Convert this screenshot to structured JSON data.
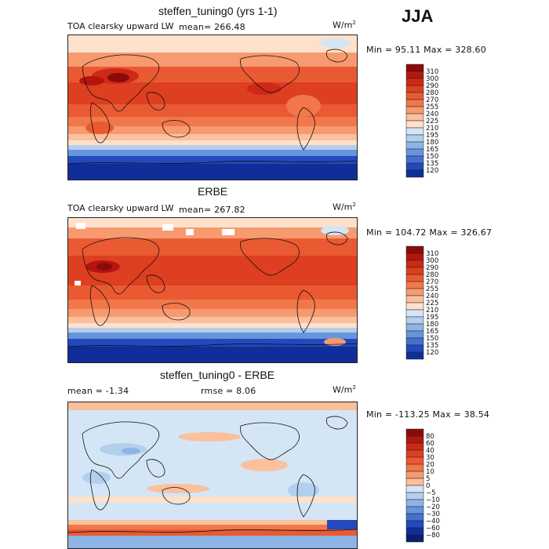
{
  "season": "JJA",
  "panels": [
    {
      "title": "steffen_tuning0 (yrs 1-1)",
      "variable": "TOA clearsky upward LW",
      "stat_left": "mean= 266.48",
      "stat_right": "",
      "units": "W/m",
      "units_exp": "2",
      "minmax": "Min =  95.11 Max = 328.60",
      "colorbar_ticks": [
        "310",
        "300",
        "290",
        "280",
        "270",
        "255",
        "240",
        "225",
        "210",
        "195",
        "180",
        "165",
        "150",
        "135",
        "120"
      ],
      "colorbar_colors": [
        "#8c0a0a",
        "#b3160f",
        "#cc2a16",
        "#de3f20",
        "#ea5a32",
        "#f2774b",
        "#f79a70",
        "#fbc09c",
        "#fde1cc",
        "#d4e6f6",
        "#b3cfee",
        "#8db4e5",
        "#6794db",
        "#4470d0",
        "#2249bd",
        "#102e99"
      ]
    },
    {
      "title": "ERBE",
      "variable": "TOA clearsky upward LW",
      "stat_left": "mean= 267.82",
      "stat_right": "",
      "units": "W/m",
      "units_exp": "2",
      "minmax": "Min = 104.72 Max = 326.67",
      "colorbar_ticks": [
        "310",
        "300",
        "290",
        "280",
        "270",
        "255",
        "240",
        "225",
        "210",
        "195",
        "180",
        "165",
        "150",
        "135",
        "120"
      ],
      "colorbar_colors": [
        "#8c0a0a",
        "#b3160f",
        "#cc2a16",
        "#de3f20",
        "#ea5a32",
        "#f2774b",
        "#f79a70",
        "#fbc09c",
        "#fde1cc",
        "#d4e6f6",
        "#b3cfee",
        "#8db4e5",
        "#6794db",
        "#4470d0",
        "#2249bd",
        "#102e99"
      ]
    },
    {
      "title": "steffen_tuning0 - ERBE",
      "variable": "",
      "stat_left": "mean =   -1.34",
      "stat_right": "rmse =    8.06",
      "units": "W/m",
      "units_exp": "2",
      "minmax": "Min = -113.25 Max =  38.54",
      "colorbar_ticks": [
        "80",
        "60",
        "40",
        "30",
        "20",
        "10",
        "5",
        "0",
        "−5",
        "−10",
        "−20",
        "−30",
        "−40",
        "−60",
        "−80"
      ],
      "colorbar_colors": [
        "#8c0a0a",
        "#b3160f",
        "#cc2a16",
        "#de3f20",
        "#ea5a32",
        "#f2774b",
        "#f79a70",
        "#fbc09c",
        "#d4e6f6",
        "#b3cfee",
        "#8db4e5",
        "#6794db",
        "#4470d0",
        "#2249bd",
        "#102e99",
        "#08206e"
      ]
    }
  ]
}
